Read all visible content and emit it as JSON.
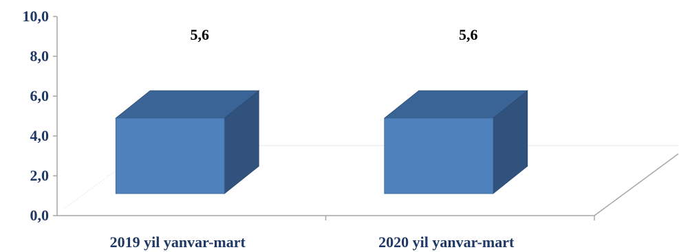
{
  "chart_data": {
    "type": "bar",
    "categories": [
      "2019 yil yanvar-mart",
      "2020 yil yanvar-mart"
    ],
    "values": [
      5.6,
      5.6
    ],
    "data_labels": [
      "5,6",
      "5,6"
    ],
    "y_ticks": [
      "0,0",
      "2,0",
      "4,0",
      "6,0",
      "8,0",
      "10,0"
    ],
    "ylim": [
      0,
      10
    ],
    "title": "",
    "xlabel": "",
    "ylabel": "",
    "grid": true,
    "legend": "none",
    "style": "3d",
    "colors": {
      "bar_front": "#4f81bd",
      "bar_top": "#3a6496",
      "bar_side": "#30527c",
      "axis_text": "#1f3864",
      "data_label": "#000000",
      "axis_line": "#a6a6a6"
    }
  }
}
